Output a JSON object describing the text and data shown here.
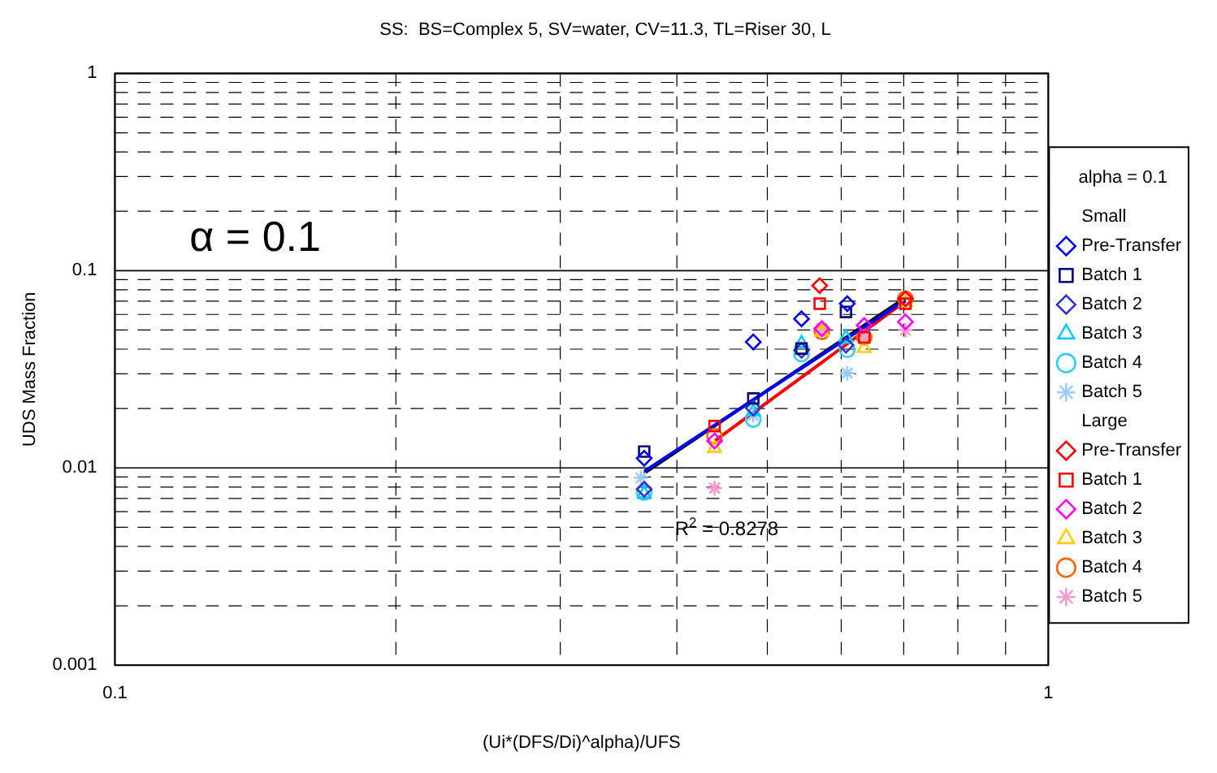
{
  "chart_data": {
    "type": "scatter",
    "title": "SS:  BS=Complex 5, SV=water, CV=11.3, TL=Riser 30, L",
    "xlabel": "(Ui*(DFS/Di)^alpha)/UFS",
    "ylabel": "UDS Mass Fraction",
    "legend_title": "alpha = 0.1",
    "log": "xy",
    "grid": true,
    "legend": "right",
    "xlim": [
      0.1,
      1
    ],
    "ylim": [
      0.001,
      1
    ],
    "xticks": [
      0.1,
      {
        "value": 0.2,
        "label": null
      },
      {
        "value": 0.3,
        "label": null
      },
      {
        "value": 0.4,
        "label": null
      },
      {
        "value": 0.5,
        "label": null
      },
      {
        "value": 0.6,
        "label": null
      },
      {
        "value": 0.7,
        "label": null
      },
      {
        "value": 0.8,
        "label": null
      },
      {
        "value": 0.9,
        "label": null
      },
      1
    ],
    "yticks": [
      0.001,
      {
        "value": 0.002,
        "label": null
      },
      {
        "value": 0.003,
        "label": null
      },
      {
        "value": 0.004,
        "label": null
      },
      {
        "value": 0.005,
        "label": null
      },
      {
        "value": 0.006,
        "label": null
      },
      {
        "value": 0.007,
        "label": null
      },
      {
        "value": 0.008,
        "label": null
      },
      {
        "value": 0.009,
        "label": null
      },
      0.01,
      {
        "value": 0.02,
        "label": null
      },
      {
        "value": 0.03,
        "label": null
      },
      {
        "value": 0.04,
        "label": null
      },
      {
        "value": 0.05,
        "label": null
      },
      {
        "value": 0.06,
        "label": null
      },
      {
        "value": 0.07,
        "label": null
      },
      {
        "value": 0.08,
        "label": null
      },
      {
        "value": 0.09,
        "label": null
      },
      0.1,
      {
        "value": 0.2,
        "label": null
      },
      {
        "value": 0.3,
        "label": null
      },
      {
        "value": 0.4,
        "label": null
      },
      {
        "value": 0.5,
        "label": null
      },
      {
        "value": 0.6,
        "label": null
      },
      {
        "value": 0.7,
        "label": null
      },
      {
        "value": 0.8,
        "label": null
      },
      {
        "value": 0.9,
        "label": null
      },
      1
    ],
    "annotations": [
      "α = 0.1",
      "R$^{2}$ = 0.8278"
    ],
    "series": [
      {
        "name": "Small",
        "marker": "none"
      },
      {
        "name": "Pre-Transfer",
        "color": "#0000ff",
        "marker": "diamond",
        "x": [
          0.369,
          0.483,
          0.544,
          0.609
        ],
        "values": [
          0.0112,
          0.0435,
          0.057,
          0.068
        ]
      },
      {
        "name": "Batch 1",
        "color": "#000080",
        "marker": "square",
        "x": [
          0.369,
          0.483,
          0.544,
          0.607
        ],
        "values": [
          0.0121,
          0.0225,
          0.0403,
          0.0617
        ]
      },
      {
        "name": "Batch 2",
        "color": "#3333cc",
        "marker": "diamond",
        "x": [
          0.369,
          0.483,
          0.544,
          0.607
        ],
        "values": [
          0.0078,
          0.0201,
          0.0395,
          0.0419
        ]
      },
      {
        "name": "Batch 3",
        "color": "#00ccff",
        "marker": "triangle",
        "x": [
          0.369,
          0.483,
          0.544,
          0.607
        ],
        "values": [
          0.0074,
          0.0193,
          0.0428,
          0.0459
        ]
      },
      {
        "name": "Batch 4",
        "color": "#33ccff",
        "marker": "circle",
        "x": [
          0.369,
          0.483,
          0.544,
          0.609
        ],
        "values": [
          0.0075,
          0.0176,
          0.0378,
          0.0397
        ]
      },
      {
        "name": "Batch 5",
        "color": "#99ccff",
        "marker": "cross",
        "x": [
          0.366,
          0.483,
          0.609
        ],
        "values": [
          0.0089,
          0.0185,
          0.0302
        ]
      },
      {
        "name": "Large",
        "marker": "none"
      },
      {
        "name": "Pre-Transfer",
        "color": "#ff0000",
        "marker": "diamond",
        "x": [
          0.569,
          0.703
        ],
        "values": [
          0.084,
          0.072
        ]
      },
      {
        "name": "Batch 1",
        "color": "#ff0000",
        "marker": "square",
        "x": [
          0.439,
          0.569,
          0.635,
          0.703
        ],
        "values": [
          0.0163,
          0.068,
          0.0459,
          0.068
        ]
      },
      {
        "name": "Batch 2",
        "color": "#ff00ff",
        "marker": "diamond",
        "x": [
          0.439,
          0.572,
          0.635,
          0.703
        ],
        "values": [
          0.0137,
          0.0508,
          0.0528,
          0.055
        ]
      },
      {
        "name": "Batch 3",
        "color": "#ffcc00",
        "marker": "triangle",
        "x": [
          0.439,
          0.572,
          0.635,
          0.703
        ],
        "values": [
          0.0126,
          0.049,
          0.0404,
          0.069
        ]
      },
      {
        "name": "Batch 4",
        "color": "#ff6600",
        "marker": "circle",
        "x": [
          0.439,
          0.572,
          0.635,
          0.703
        ],
        "values": [
          0.0145,
          0.049,
          0.0459,
          0.072
        ]
      },
      {
        "name": "Batch 5",
        "color": "#ff99cc",
        "marker": "cross",
        "x": [
          0.439,
          0.572,
          0.635,
          0.703
        ],
        "values": [
          0.0079,
          0.051,
          0.046,
          0.05
        ]
      },
      {
        "type": "line",
        "color": "#0000ff",
        "marker": "none",
        "x": [
          0.369,
          0.703
        ],
        "values": [
          0.0096,
          0.071
        ]
      },
      {
        "type": "line",
        "color": "#ff0000",
        "marker": "none",
        "x": [
          0.439,
          0.703
        ],
        "values": [
          0.0137,
          0.07
        ]
      },
      {
        "type": "line",
        "color": "#000000",
        "marker": "none",
        "x": [
          0.369,
          0.703
        ],
        "values": [
          0.0094,
          0.073
        ]
      }
    ]
  }
}
